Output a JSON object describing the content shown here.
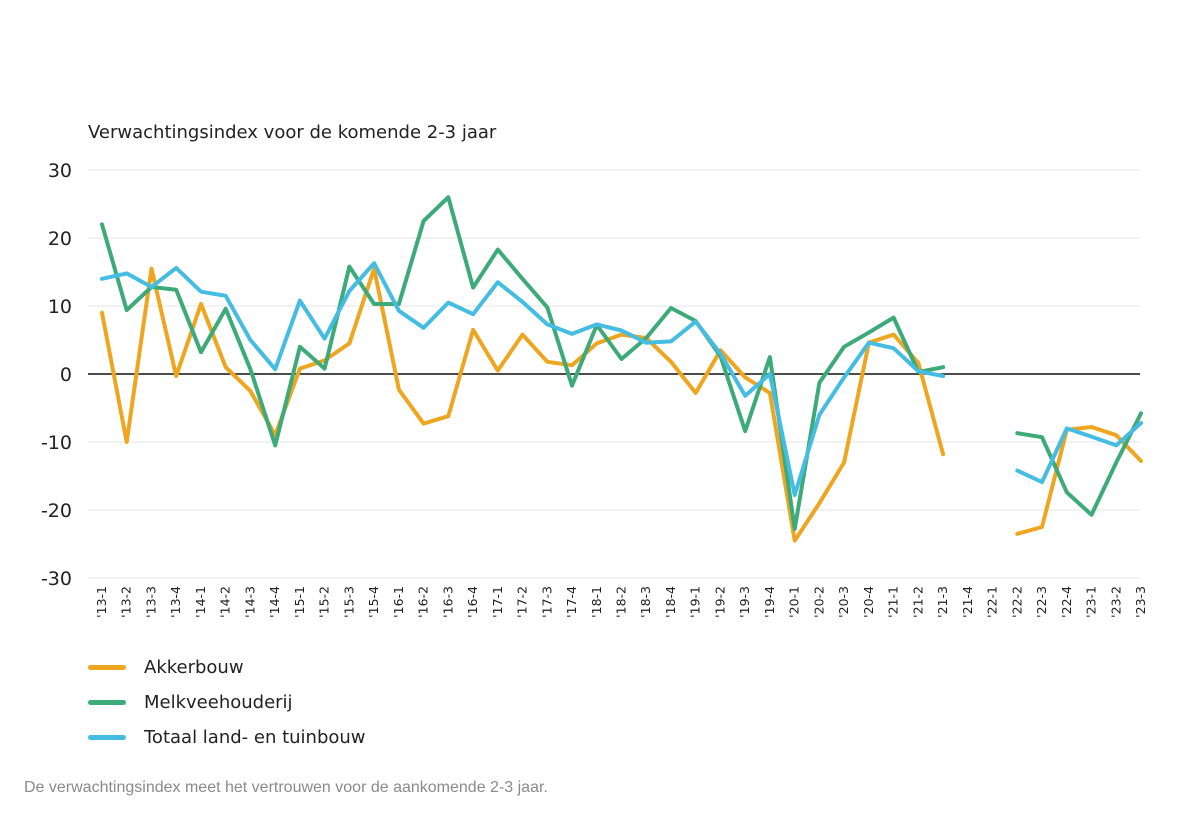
{
  "chart_data": {
    "type": "line",
    "title": "Verwachtingsindex voor de komende 2-3 jaar",
    "xlabel": "",
    "ylabel": "",
    "ylim": [
      -30,
      30
    ],
    "yticks": [
      30,
      20,
      10,
      0,
      -10,
      -20,
      -30
    ],
    "grid": true,
    "legend_position": "bottom-left",
    "categories": [
      "'13-1",
      "'13-2",
      "'13-3",
      "'13-4",
      "'14-1",
      "'14-2",
      "'14-3",
      "'14-4",
      "'15-1",
      "'15-2",
      "'15-3",
      "'15-4",
      "'16-1",
      "'16-2",
      "'16-3",
      "'16-4",
      "'17-1",
      "'17-2",
      "'17-3",
      "'17-4",
      "'18-1",
      "'18-2",
      "'18-3",
      "'18-4",
      "'19-1",
      "'19-2",
      "'19-3",
      "'19-4",
      "'20-1",
      "'20-2",
      "'20-3",
      "'20-4",
      "'21-1",
      "'21-2",
      "'21-3",
      "'21-4",
      "'22-1",
      "'22-2",
      "'22-3",
      "'22-4",
      "'23-1",
      "'23-2",
      "'23-3"
    ],
    "series": [
      {
        "name": "Akkerbouw",
        "color": "#EEA620",
        "values": [
          9,
          -10,
          15.5,
          -0.3,
          10.3,
          1,
          -2.5,
          -9,
          0.8,
          2,
          4.5,
          15.5,
          -2.3,
          -7.3,
          -6.2,
          6.5,
          0.5,
          5.8,
          1.8,
          1.3,
          4.5,
          5.8,
          5.3,
          1.8,
          -2.8,
          3.5,
          -0.5,
          -2.8,
          -24.5,
          -19,
          -13,
          4.6,
          5.8,
          1.6,
          -11.8,
          null,
          null,
          -23.5,
          -22.5,
          -8.2,
          -7.8,
          -9,
          -12.8
        ]
      },
      {
        "name": "Melkveehouderij",
        "color": "#3DAA7A",
        "values": [
          22,
          9.4,
          12.8,
          12.4,
          3.2,
          9.6,
          0.7,
          -10.5,
          4,
          0.8,
          15.8,
          10.3,
          10.3,
          22.5,
          26,
          12.7,
          18.3,
          14,
          9.8,
          -1.7,
          7.2,
          2.2,
          5.3,
          9.7,
          7.8,
          2.6,
          -8.4,
          2.5,
          -22.8,
          -1.3,
          4,
          6.1,
          8.3,
          0.3,
          1,
          null,
          null,
          -8.7,
          -9.3,
          -17.4,
          -20.7,
          -13,
          -5.8
        ]
      },
      {
        "name": "Totaal land- en tuinbouw",
        "color": "#45BDE2",
        "values": [
          14,
          14.8,
          12.8,
          15.6,
          12.1,
          11.5,
          5,
          0.7,
          10.8,
          5.2,
          12.2,
          16.3,
          9.3,
          6.8,
          10.5,
          8.8,
          13.5,
          10.6,
          7.3,
          5.9,
          7.3,
          6.4,
          4.6,
          4.8,
          7.7,
          3,
          -3.2,
          0,
          -17.8,
          -6,
          -0.5,
          4.6,
          3.8,
          0.4,
          -0.3,
          null,
          null,
          -14.2,
          -15.9,
          -8,
          -9.2,
          -10.5,
          -7.2
        ]
      }
    ]
  },
  "footnote": "De verwachtingsindex meet het vertrouwen voor de aankomende 2-3 jaar."
}
